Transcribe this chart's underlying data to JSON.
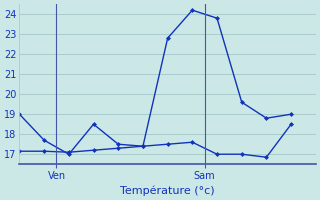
{
  "xlabel": "Température (°c)",
  "background_color": "#cce8e6",
  "grid_color": "#aacccc",
  "line_color": "#1133bb",
  "separator_color": "#4455aa",
  "ylim": [
    16.5,
    24.5
  ],
  "yticks": [
    17,
    18,
    19,
    20,
    21,
    22,
    23,
    24
  ],
  "xlim": [
    0,
    12
  ],
  "line1_x": [
    0,
    1,
    2,
    3,
    4,
    5,
    6,
    7,
    8,
    9,
    10,
    11
  ],
  "line1_y": [
    19,
    17.7,
    17.0,
    18.5,
    17.5,
    17.4,
    22.8,
    24.2,
    23.8,
    19.6,
    18.8,
    19.0
  ],
  "line2_x": [
    0,
    1,
    2,
    3,
    4,
    5,
    6,
    7,
    8,
    9,
    10,
    11
  ],
  "line2_y": [
    17.15,
    17.15,
    17.1,
    17.2,
    17.3,
    17.4,
    17.5,
    17.6,
    17.0,
    17.0,
    16.85,
    18.5
  ],
  "ven_x": 1.5,
  "sam_x": 7.5,
  "tick_labels": [
    "Ven",
    "Sam"
  ],
  "xlabel_fontsize": 8,
  "ytick_fontsize": 7,
  "xtick_fontsize": 7
}
